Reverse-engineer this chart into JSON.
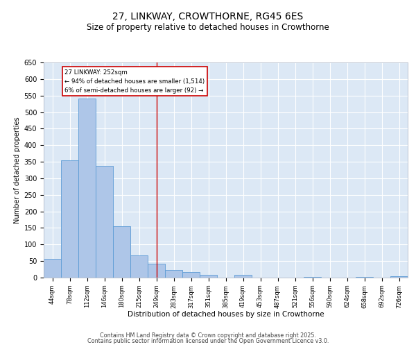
{
  "title": "27, LINKWAY, CROWTHORNE, RG45 6ES",
  "subtitle": "Size of property relative to detached houses in Crowthorne",
  "xlabel": "Distribution of detached houses by size in Crowthorne",
  "ylabel": "Number of detached properties",
  "categories": [
    "44sqm",
    "78sqm",
    "112sqm",
    "146sqm",
    "180sqm",
    "215sqm",
    "249sqm",
    "283sqm",
    "317sqm",
    "351sqm",
    "385sqm",
    "419sqm",
    "453sqm",
    "487sqm",
    "521sqm",
    "556sqm",
    "590sqm",
    "624sqm",
    "658sqm",
    "692sqm",
    "726sqm"
  ],
  "values": [
    57,
    355,
    540,
    337,
    155,
    68,
    42,
    23,
    17,
    8,
    0,
    9,
    0,
    0,
    0,
    3,
    0,
    0,
    3,
    0,
    4
  ],
  "bar_color": "#aec6e8",
  "bar_edge_color": "#5b9bd5",
  "background_color": "#dce8f5",
  "vline_x_index": 6,
  "vline_color": "#cc0000",
  "annotation_text": "27 LINKWAY: 252sqm\n← 94% of detached houses are smaller (1,514)\n6% of semi-detached houses are larger (92) →",
  "annotation_box_color": "#ffffff",
  "annotation_box_edge_color": "#cc0000",
  "ylim": [
    0,
    650
  ],
  "yticks": [
    0,
    50,
    100,
    150,
    200,
    250,
    300,
    350,
    400,
    450,
    500,
    550,
    600,
    650
  ],
  "footer1": "Contains HM Land Registry data © Crown copyright and database right 2025.",
  "footer2": "Contains public sector information licensed under the Open Government Licence v3.0.",
  "title_fontsize": 10,
  "subtitle_fontsize": 8.5,
  "footer_fontsize": 5.8
}
